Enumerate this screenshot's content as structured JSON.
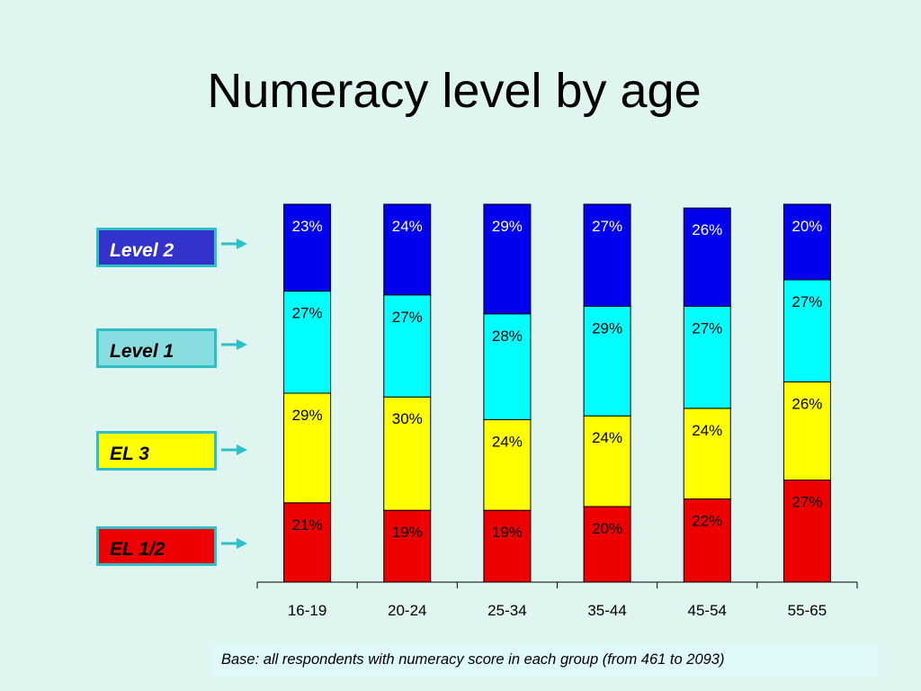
{
  "title": "Numeracy level by age",
  "note": "Base: all respondents with numeracy score in each group (from 461 to 2093)",
  "colors": {
    "EL 1/2": "#ee0000",
    "EL 3": "#ffff00",
    "Level 1": "#00ffff",
    "Level 2": "#0000ee"
  },
  "legend": [
    {
      "label": "Level 2",
      "fill": "#3333cc",
      "text": "#ffffff"
    },
    {
      "label": "Level 1",
      "fill": "#88dde0",
      "text": "#000000"
    },
    {
      "label": "EL 3",
      "fill": "#ffff00",
      "text": "#000000"
    },
    {
      "label": "EL 1/2",
      "fill": "#ee0000",
      "text": "#000000"
    }
  ],
  "chart_data": {
    "type": "bar",
    "stacked": true,
    "categories": [
      "16-19",
      "20-24",
      "25-34",
      "35-44",
      "45-54",
      "55-65"
    ],
    "series": [
      {
        "name": "EL 1/2",
        "values": [
          21,
          19,
          19,
          20,
          22,
          27
        ],
        "labels": [
          "21%",
          "19%",
          "19%",
          "20%",
          "22%",
          "27%"
        ]
      },
      {
        "name": "EL 3",
        "values": [
          29,
          30,
          24,
          24,
          24,
          26
        ],
        "labels": [
          "29%",
          "30%",
          "24%",
          "24%",
          "24%",
          "26%"
        ]
      },
      {
        "name": "Level 1",
        "values": [
          27,
          27,
          28,
          29,
          27,
          27
        ],
        "labels": [
          "27%",
          "27%",
          "28%",
          "29%",
          "27%",
          "27%"
        ]
      },
      {
        "name": "Level 2",
        "values": [
          23,
          24,
          29,
          27,
          26,
          20
        ],
        "labels": [
          "23%",
          "24%",
          "29%",
          "27%",
          "26%",
          "20%"
        ]
      }
    ],
    "ylim": [
      0,
      100
    ],
    "xlabel": "",
    "ylabel": "",
    "grid": false,
    "legend_position": "left"
  }
}
